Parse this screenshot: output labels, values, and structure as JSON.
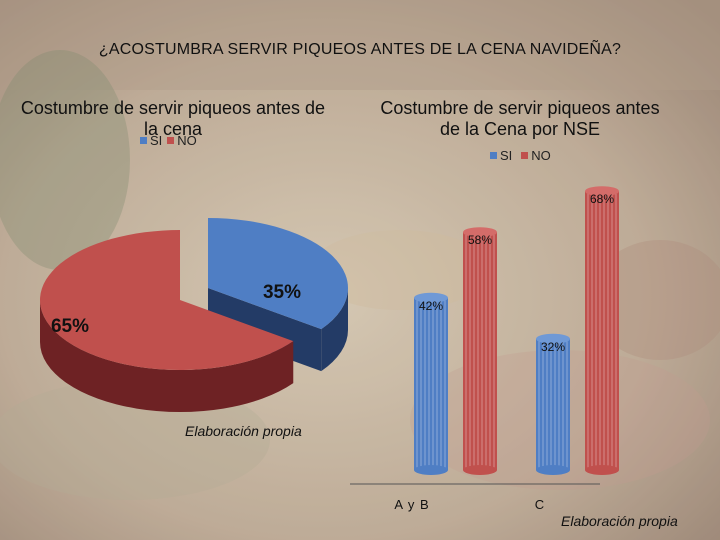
{
  "title": "¿ACOSTUMBRA SERVIR PIQUEOS ANTES DE LA CENA NAVIDEÑA?",
  "colors": {
    "si": "#4f7ec4",
    "no": "#c0504d",
    "si_dark": "#233b66",
    "no_dark": "#6e2224"
  },
  "chart_data": [
    {
      "type": "pie",
      "title": "Costumbre de servir piqueos antes de la cena",
      "legend": [
        "SI",
        "NO"
      ],
      "categories": [
        "SI",
        "NO"
      ],
      "values": [
        35,
        65
      ],
      "labels": [
        "35%",
        "65%"
      ],
      "credit": "Elaboración propia"
    },
    {
      "type": "bar",
      "title": "Costumbre de servir piqueos antes de la Cena por  NSE",
      "legend": [
        "SI",
        "NO"
      ],
      "categories": [
        "A y B",
        "C"
      ],
      "series": [
        {
          "name": "SI",
          "values": [
            42,
            32
          ],
          "labels": [
            "42%",
            "32%"
          ]
        },
        {
          "name": "NO",
          "values": [
            58,
            68
          ],
          "labels": [
            "58%",
            "68%"
          ]
        }
      ],
      "ylim": [
        0,
        100
      ],
      "credit": "Elaboración propia"
    }
  ]
}
